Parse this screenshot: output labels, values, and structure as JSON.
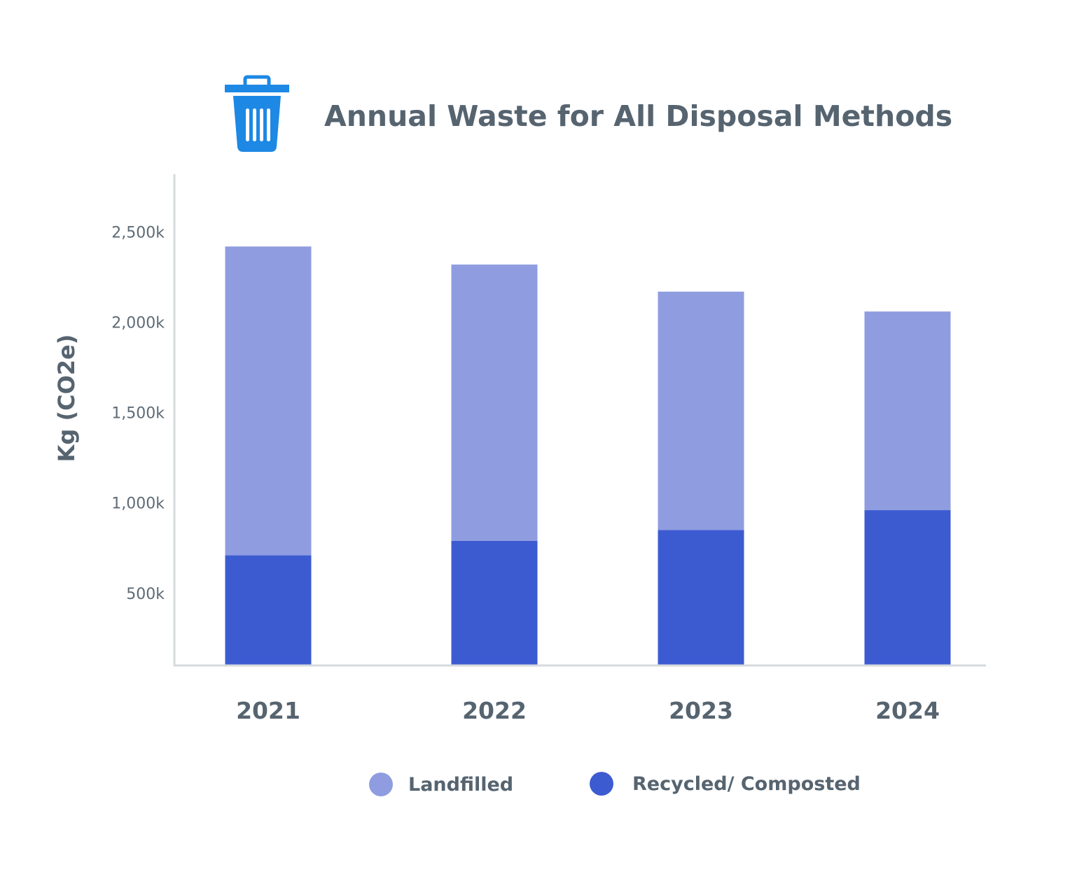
{
  "chart_data": {
    "type": "bar",
    "stacked": true,
    "title": "Annual Waste for All Disposal Methods",
    "title_icon": "trash-can-icon",
    "xlabel": "",
    "ylabel": "Kg (CO2e)",
    "categories": [
      "2021",
      "2022",
      "2023",
      "2024"
    ],
    "series": [
      {
        "name": "Recycled/ Composted",
        "color": "#3d5bd1",
        "values": [
          710,
          790,
          850,
          960
        ]
      },
      {
        "name": "Landfilled",
        "color": "#8f9de0",
        "values": [
          1710,
          1530,
          1320,
          1100
        ]
      }
    ],
    "yticks": [
      {
        "value": 500,
        "label": "500k"
      },
      {
        "value": 1000,
        "label": "1,000k"
      },
      {
        "value": 1500,
        "label": "1,500k"
      },
      {
        "value": 2000,
        "label": "2,000k"
      },
      {
        "value": 2500,
        "label": "2,500k"
      }
    ],
    "ylim": [
      100,
      2820
    ],
    "grid": false,
    "legend": {
      "position": "bottom",
      "entries": [
        "Landfilled",
        "Recycled/ Composted"
      ]
    },
    "colors": {
      "axis": "#d6dadd",
      "text": "#566470",
      "icon": "#1e88e5"
    }
  }
}
